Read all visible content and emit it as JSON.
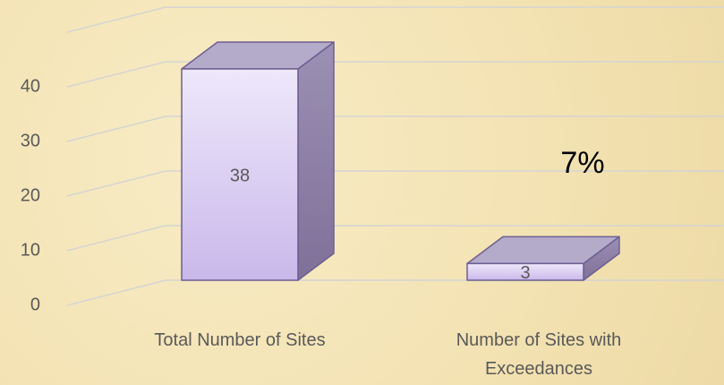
{
  "chart_data": {
    "type": "bar3d",
    "categories": [
      "Total Number of Sites",
      "Number of Sites with Exceedances"
    ],
    "values": [
      38,
      3
    ],
    "annotation": "7%",
    "color": "#d8cdf0",
    "ylim": [
      0,
      50
    ],
    "yticks": [
      0,
      10,
      20,
      30,
      40
    ],
    "grid": true
  }
}
